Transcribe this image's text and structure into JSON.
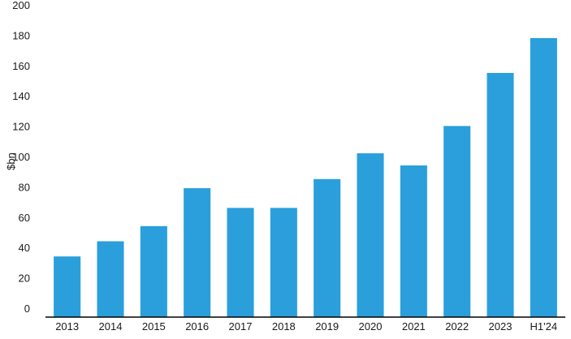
{
  "chart_data": {
    "type": "bar",
    "title": "",
    "xlabel": "",
    "ylabel": "$bn",
    "ylim": [
      0,
      200
    ],
    "yticks": [
      0,
      20,
      40,
      60,
      80,
      100,
      120,
      140,
      160,
      180,
      200
    ],
    "grid": false,
    "legend": "none",
    "bar_color": "#2A9FDB",
    "categories": [
      "2013",
      "2014",
      "2015",
      "2016",
      "2017",
      "2018",
      "2019",
      "2020",
      "2021",
      "2022",
      "2023",
      "H1'24"
    ],
    "values": [
      40,
      50,
      60,
      85,
      72,
      72,
      91,
      108,
      100,
      126,
      161,
      184
    ]
  }
}
